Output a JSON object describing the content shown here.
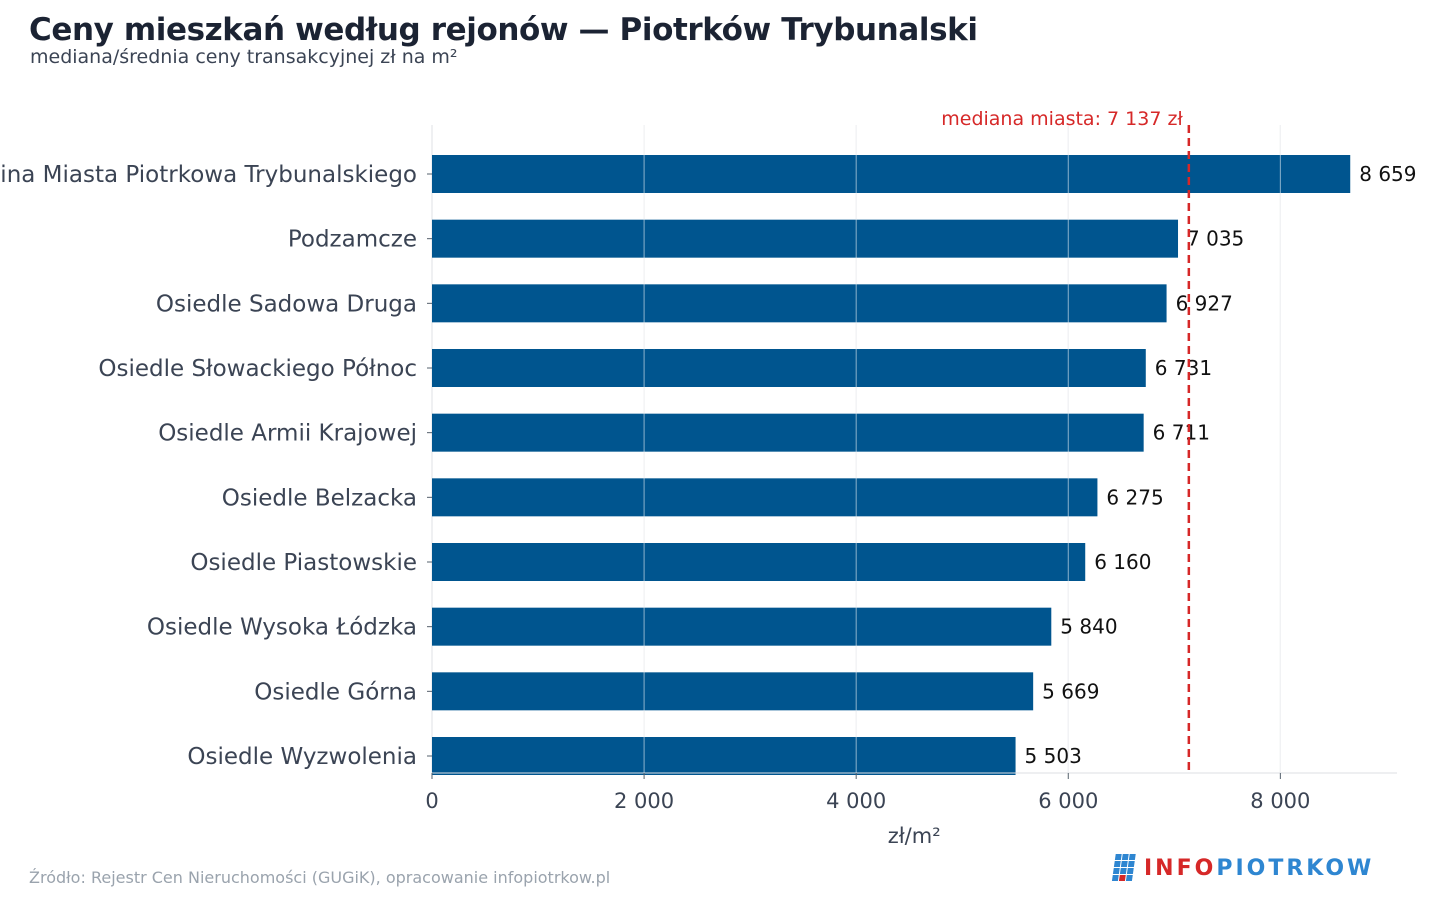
{
  "header": {
    "title": "Ceny mieszkań według rejonów — Piotrków Trybunalski",
    "subtitle": "mediana/średnia ceny transakcyjnej zł na m²"
  },
  "chart_data": {
    "type": "bar",
    "orientation": "horizontal",
    "categories": [
      "Gmina Miasta Piotrkowa Trybunalskiego",
      "Podzamcze",
      "Osiedle Sadowa Druga",
      "Osiedle Słowackiego Północ",
      "Osiedle Armii Krajowej",
      "Osiedle Belzacka",
      "Osiedle Piastowskie",
      "Osiedle Wysoka Łódzka",
      "Osiedle Górna",
      "Osiedle Wyzwolenia"
    ],
    "values": [
      8659,
      7035,
      6927,
      6731,
      6711,
      6275,
      6160,
      5840,
      5669,
      5503
    ],
    "value_labels": [
      "8 659",
      "7 035",
      "6 927",
      "6 731",
      "6 711",
      "6 275",
      "6 160",
      "5 840",
      "5 669",
      "5 503"
    ],
    "xlabel": "zł/m²",
    "ylabel": "",
    "xlim": [
      0,
      9100
    ],
    "x_ticks": [
      0,
      2000,
      4000,
      6000,
      8000
    ],
    "x_tick_labels": [
      "0",
      "2 000",
      "4 000",
      "6 000",
      "8 000"
    ],
    "grid": "vertical",
    "bar_color": "#00558f",
    "reference_line": {
      "value": 7137,
      "label": "mediana miasta: 7 137 zł",
      "color": "#d62828",
      "style": "dashed"
    }
  },
  "footer": {
    "source": "Źródło: Rejestr Cen Nieruchomości (GUGiK), opracowanie infopiotrkow.pl",
    "logo_part1": "INFO",
    "logo_part2": "PIOTRKOW"
  }
}
